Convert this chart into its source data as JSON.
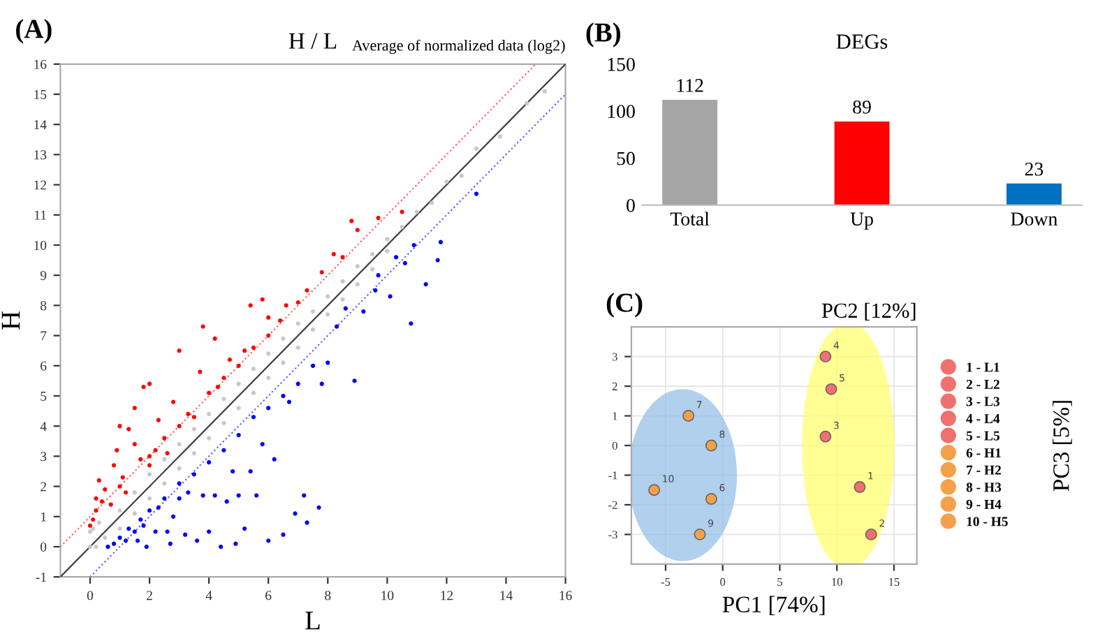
{
  "chart_data": [
    {
      "type": "scatter",
      "title": "H / L",
      "annotations": [
        "(A)",
        "Average of normalized data (log2)"
      ],
      "xlabel": "L",
      "ylabel": "H",
      "xlim": [
        -1,
        16
      ],
      "ylim": [
        -1,
        16
      ],
      "xticks": [
        0,
        2,
        4,
        6,
        8,
        10,
        12,
        14,
        16
      ],
      "yticks": [
        -1,
        0,
        1,
        2,
        3,
        4,
        5,
        6,
        7,
        8,
        9,
        10,
        11,
        12,
        13,
        14,
        15,
        16
      ],
      "marker": "circle",
      "series": [
        {
          "color": "#c8c8c8",
          "x": [
            0,
            0,
            0.3,
            0.5,
            1,
            1,
            1.5,
            1.5,
            2,
            2,
            2.5,
            2.5,
            3,
            3,
            3.5,
            3.5,
            4,
            4,
            4.5,
            4.5,
            5,
            5,
            5.5,
            5.5,
            6,
            6,
            6.5,
            6.5,
            7,
            7,
            7.5,
            7.5,
            8,
            8,
            8.5,
            8.5,
            9,
            9,
            9.5,
            9.5,
            10,
            10,
            10.5,
            11,
            11.5,
            12,
            12.5,
            13,
            13.8,
            14.7,
            15.3,
            0.2,
            0.6,
            0.1
          ],
          "values": [
            0,
            0.5,
            0.8,
            0.3,
            1.2,
            0.6,
            1.8,
            1.1,
            2.4,
            1.6,
            2.9,
            2.1,
            3.4,
            2.6,
            3.9,
            3.1,
            4.4,
            3.6,
            4.9,
            4.1,
            5.4,
            4.6,
            5.9,
            5.1,
            6.4,
            5.6,
            6.9,
            6.1,
            7.4,
            6.6,
            7.8,
            7.2,
            8.3,
            7.7,
            8.8,
            8.2,
            9.3,
            8.7,
            9.7,
            9.2,
            10.2,
            9.8,
            10.6,
            11.1,
            11.4,
            12.1,
            12.3,
            13.2,
            13.6,
            14.7,
            15.1,
            0,
            0,
            0.6
          ]
        },
        {
          "color": "#ff0000",
          "x": [
            0,
            0.1,
            0.2,
            0.3,
            0.4,
            0.5,
            0.7,
            0.8,
            0.9,
            1.0,
            1.1,
            1.2,
            1.3,
            1.5,
            1.5,
            1.7,
            1.8,
            2.0,
            2.0,
            2.2,
            2.3,
            2.5,
            2.6,
            2.8,
            3.0,
            3.0,
            3.3,
            3.5,
            3.7,
            3.8,
            4.0,
            4.2,
            4.3,
            4.5,
            4.7,
            5.0,
            5.2,
            5.4,
            5.5,
            5.8,
            6.0,
            6.0,
            6.4,
            6.6,
            7.0,
            7.3,
            7.8,
            8.2,
            8.5,
            8.8,
            9.0,
            9.7,
            10.5,
            0.2,
            1.0,
            2.0
          ],
          "values": [
            0.7,
            0.9,
            1.2,
            2.2,
            1.5,
            1.9,
            1.4,
            2.7,
            3.2,
            4.0,
            2.3,
            1.8,
            3.9,
            4.6,
            3.4,
            2.9,
            5.3,
            5.4,
            2.7,
            3.2,
            4.2,
            3.6,
            3.1,
            4.8,
            6.5,
            4.0,
            4.4,
            4.3,
            5.8,
            7.3,
            5.1,
            6.9,
            5.3,
            5.6,
            6.2,
            6.0,
            6.5,
            8.0,
            6.6,
            8.2,
            7.6,
            7.0,
            7.5,
            8.0,
            8.1,
            8.5,
            9.1,
            9.7,
            9.6,
            10.8,
            10.5,
            10.9,
            11.1,
            1.6,
            2.0,
            3.0
          ]
        },
        {
          "color": "#0000ff",
          "x": [
            0.6,
            0.8,
            1.0,
            1.2,
            1.3,
            1.5,
            1.6,
            1.7,
            1.8,
            1.9,
            2.0,
            2.2,
            2.3,
            2.5,
            2.6,
            2.7,
            2.8,
            3.0,
            3.0,
            3.2,
            3.3,
            3.5,
            3.6,
            3.8,
            4.0,
            4.0,
            4.2,
            4.4,
            4.5,
            4.6,
            4.8,
            4.9,
            5.0,
            5.0,
            5.2,
            5.4,
            5.5,
            5.6,
            5.8,
            6.0,
            6.0,
            6.2,
            6.5,
            6.5,
            6.7,
            6.9,
            7.0,
            7.2,
            7.3,
            7.5,
            7.7,
            7.8,
            8.0,
            8.3,
            8.6,
            8.9,
            9.2,
            9.6,
            9.7,
            10.1,
            10.3,
            10.6,
            10.8,
            10.9,
            11.3,
            11.7,
            11.8,
            13.0
          ],
          "values": [
            0,
            0.1,
            0.3,
            0.2,
            0.6,
            0.5,
            0.2,
            0.9,
            0.7,
            0,
            1.2,
            0.5,
            1.3,
            1.6,
            0.5,
            0.1,
            1.0,
            2.1,
            1.6,
            0.4,
            1.8,
            2.4,
            0.2,
            1.7,
            2.8,
            0.5,
            1.7,
            0,
            3.2,
            1.5,
            2.5,
            0.1,
            3.7,
            1.7,
            0.6,
            2.5,
            4.3,
            1.7,
            3.4,
            4.6,
            0.2,
            2.9,
            5.0,
            0.4,
            4.8,
            1.1,
            5.4,
            1.7,
            0.8,
            6.0,
            1.3,
            5.4,
            6.1,
            7.3,
            7.9,
            5.5,
            7.8,
            8.5,
            9.0,
            8.3,
            9.6,
            9.4,
            7.4,
            10.0,
            8.7,
            9.5,
            10.1,
            11.7
          ]
        },
        {
          "type": "line",
          "marker": "none",
          "color": "#404040",
          "line_style": "solid",
          "x": [
            -1,
            16
          ],
          "values": [
            -1,
            16
          ]
        },
        {
          "type": "line",
          "marker": "none",
          "color": "#ff6060",
          "line_style": "dotted",
          "x": [
            -1,
            15
          ],
          "values": [
            0,
            16
          ]
        },
        {
          "type": "line",
          "marker": "none",
          "color": "#6060ff",
          "line_style": "dotted",
          "x": [
            0,
            16
          ],
          "values": [
            -1,
            15
          ]
        }
      ]
    },
    {
      "type": "bar",
      "title": "DEGs",
      "annotations": [
        "(B)"
      ],
      "categories": [
        "Total",
        "Up",
        "Down"
      ],
      "values": [
        112,
        89,
        23
      ],
      "colors": [
        "#a5a5a5",
        "#ff0000",
        "#0070c0"
      ],
      "ylim": [
        0,
        150
      ],
      "yticks": [
        0,
        50,
        100,
        150
      ],
      "data_labels": true
    },
    {
      "type": "scatter",
      "annotations": [
        "(C)",
        "PC2 [12%]",
        {
          "text": "1",
          "x": 12,
          "y": -1.4
        },
        {
          "text": "2",
          "x": 13,
          "y": -3.0
        },
        {
          "text": "3",
          "x": 9,
          "y": 0.3
        },
        {
          "text": "4",
          "x": 9,
          "y": 3.0
        },
        {
          "text": "5",
          "x": 9.5,
          "y": 1.9
        },
        {
          "text": "6",
          "x": -1,
          "y": -1.8
        },
        {
          "text": "7",
          "x": -3,
          "y": 1.0
        },
        {
          "text": "8",
          "x": -1,
          "y": 0.0
        },
        {
          "text": "9",
          "x": -2,
          "y": -3.0
        },
        {
          "text": "10",
          "x": -6,
          "y": -1.5
        }
      ],
      "xlabel": "PC1 [74%]",
      "ylabel": "PC3 [5%]",
      "xlim": [
        -8,
        17
      ],
      "ylim": [
        -4,
        4
      ],
      "xticks": [
        -5,
        0,
        5,
        10,
        15
      ],
      "yticks": [
        -3,
        -2,
        -1,
        0,
        1,
        2,
        3
      ],
      "grid": true,
      "legend": "right",
      "marker": "circle",
      "series": [
        {
          "name": "1 - L1",
          "color": "#f07070",
          "x": [
            12
          ],
          "values": [
            -1.4
          ]
        },
        {
          "name": "2 - L2",
          "color": "#f07070",
          "x": [
            13
          ],
          "values": [
            -3.0
          ]
        },
        {
          "name": "3 - L3",
          "color": "#f07070",
          "x": [
            9
          ],
          "values": [
            0.3
          ]
        },
        {
          "name": "4 - L4",
          "color": "#f07070",
          "x": [
            9
          ],
          "values": [
            3.0
          ]
        },
        {
          "name": "5 - L5",
          "color": "#f07070",
          "x": [
            9.5
          ],
          "values": [
            1.9
          ]
        },
        {
          "name": "6 - H1",
          "color": "#f5a04a",
          "x": [
            -1
          ],
          "values": [
            -1.8
          ]
        },
        {
          "name": "7 - H2",
          "color": "#f5a04a",
          "x": [
            -3
          ],
          "values": [
            1.0
          ]
        },
        {
          "name": "8 - H3",
          "color": "#f5a04a",
          "x": [
            -1
          ],
          "values": [
            0.0
          ]
        },
        {
          "name": "9 - H4",
          "color": "#f5a04a",
          "x": [
            -2
          ],
          "values": [
            -3.0
          ]
        },
        {
          "name": "10 - H5",
          "color": "#f5a04a",
          "x": [
            -6
          ],
          "values": [
            -1.5
          ]
        }
      ]
    }
  ]
}
